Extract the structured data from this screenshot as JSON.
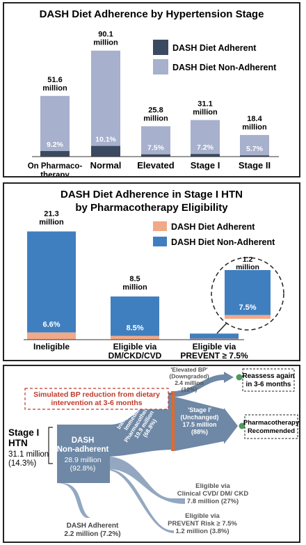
{
  "colors": {
    "p1_adherent": "#3b4a60",
    "p1_nonadherent": "#a7b0cc",
    "p2_adherent": "#f2a987",
    "p2_nonadherent": "#3f7fc0",
    "flow": "#6e88a6",
    "flow_light": "#93a8c0",
    "red": "#c0392b",
    "green": "#4d9a5a",
    "orange_bar": "#e06a2b"
  },
  "chart_data": [
    {
      "type": "bar",
      "title": "DASH Diet Adherence by Hypertension Stage",
      "categories": [
        "On Pharmaco-therapy",
        "Normal",
        "Elevated",
        "Stage I",
        "Stage II"
      ],
      "category_lines": [
        [
          "On Pharmaco-",
          "therapy"
        ],
        [
          "Normal"
        ],
        [
          "Elevated"
        ],
        [
          "Stage I"
        ],
        [
          "Stage II"
        ]
      ],
      "totals_millions": [
        51.6,
        90.1,
        25.8,
        31.1,
        18.4
      ],
      "total_labels": [
        [
          "51.6",
          "million"
        ],
        [
          "90.1",
          "million"
        ],
        [
          "25.8",
          "million"
        ],
        [
          "31.1",
          "million"
        ],
        [
          "18.4",
          "million"
        ]
      ],
      "adherent_pct": [
        9.2,
        10.1,
        7.5,
        7.2,
        5.7
      ],
      "pct_labels": [
        "9.2%",
        "10.1%",
        "7.5%",
        "7.2%",
        "5.7%"
      ],
      "series": [
        {
          "name": "DASH Diet Adherent"
        },
        {
          "name": "DASH Diet Non-Adherent"
        }
      ],
      "legend_position": "top-right"
    },
    {
      "type": "bar",
      "title_lines": [
        "DASH Diet Adherence in Stage I HTN",
        "by Pharmacotherapy Eligibility"
      ],
      "categories": [
        "Ineligible",
        "Eligible via DM/CKD/CVD",
        "Eligible via PREVENT ≥ 7.5%"
      ],
      "category_lines": [
        [
          "Ineligible"
        ],
        [
          "Eligible via",
          "DM/CKD/CVD"
        ],
        [
          "Eligible via",
          "PREVENT ≥ 7.5%"
        ]
      ],
      "totals_millions": [
        21.3,
        8.5,
        1.2
      ],
      "total_labels": [
        [
          "21.3",
          "million"
        ],
        [
          "8.5",
          "million"
        ],
        [
          "1.2",
          "million"
        ]
      ],
      "adherent_pct": [
        6.6,
        8.5,
        7.5
      ],
      "pct_labels": [
        "6.6%",
        "8.5%",
        "7.5%"
      ],
      "series": [
        {
          "name": "DASH Diet Adherent"
        },
        {
          "name": "DASH Diet Non-Adherent"
        }
      ],
      "legend_position": "top-right",
      "inset_label": {
        "value": [
          "1.2",
          "million"
        ],
        "pct": "7.5%"
      }
    }
  ],
  "sankey": {
    "source": {
      "label_lines": [
        "Stage I",
        "HTN"
      ],
      "value_lines": [
        "31.1 million",
        "(14.3%)"
      ]
    },
    "node_nonadherent": {
      "label_lines": [
        "DASH",
        "Non-adherent"
      ],
      "value_lines": [
        "28.9 million",
        "(92.8%)"
      ]
    },
    "node_adherent": {
      "label_lines": [
        "DASH Adherent",
        "2.2 million (7.2%)"
      ]
    },
    "ineligible_flow": {
      "label_lines": [
        "Ineligible for",
        "Immediate",
        "Pharmacotherapy",
        "19.9 million",
        "(68.8%)"
      ]
    },
    "elevated": {
      "label_lines": [
        "'Elevated BP'",
        "(Downgraded)",
        "2.4 million",
        "(12%)"
      ]
    },
    "stage1": {
      "label_lines": [
        "'Stage I'",
        "(Unchanged)",
        "17.5 million",
        "(88%)"
      ]
    },
    "cvd": {
      "label_lines": [
        "Eligible via",
        "Clinical CVD/ DM/ CKD",
        "7.8 million (27%)"
      ]
    },
    "prevent": {
      "label_lines": [
        "Eligible via",
        "PREVENT Risk ≥ 7.5%",
        "1.2 million (3.8%)"
      ]
    },
    "callout": {
      "lines": [
        "Simulated BP reduction from dietary",
        "intervention at 3-6 months"
      ]
    },
    "reassess": {
      "lines": [
        "Reassess again",
        "in 3-6 months"
      ]
    },
    "pharm": {
      "lines": [
        "Pharmacotherapy",
        "Recommended"
      ]
    }
  }
}
